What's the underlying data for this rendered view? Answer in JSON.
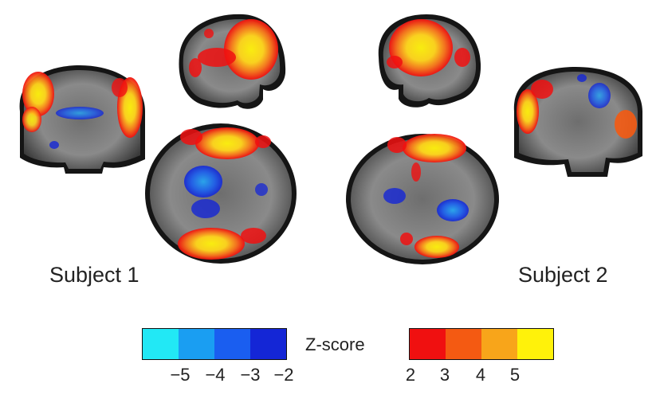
{
  "figure": {
    "subject_1_label": "Subject 1",
    "subject_2_label": "Subject 2",
    "colorbar_title": "Z-score",
    "negative_colorbar": {
      "colors": [
        "#22e8f5",
        "#1a9ef2",
        "#1a5ef0",
        "#1426d6"
      ],
      "tick_labels": [
        "−5",
        "−4",
        "−3",
        "−2"
      ]
    },
    "positive_colorbar": {
      "colors": [
        "#f01010",
        "#f45a12",
        "#f8a51a",
        "#fff20a"
      ],
      "tick_labels": [
        "2",
        "3",
        "4",
        "5"
      ]
    },
    "views": [
      {
        "subject": "Subject 1",
        "plane": "coronal"
      },
      {
        "subject": "Subject 1",
        "plane": "sagittal"
      },
      {
        "subject": "Subject 1",
        "plane": "axial"
      },
      {
        "subject": "Subject 2",
        "plane": "sagittal"
      },
      {
        "subject": "Subject 2",
        "plane": "coronal"
      },
      {
        "subject": "Subject 2",
        "plane": "axial"
      }
    ]
  }
}
